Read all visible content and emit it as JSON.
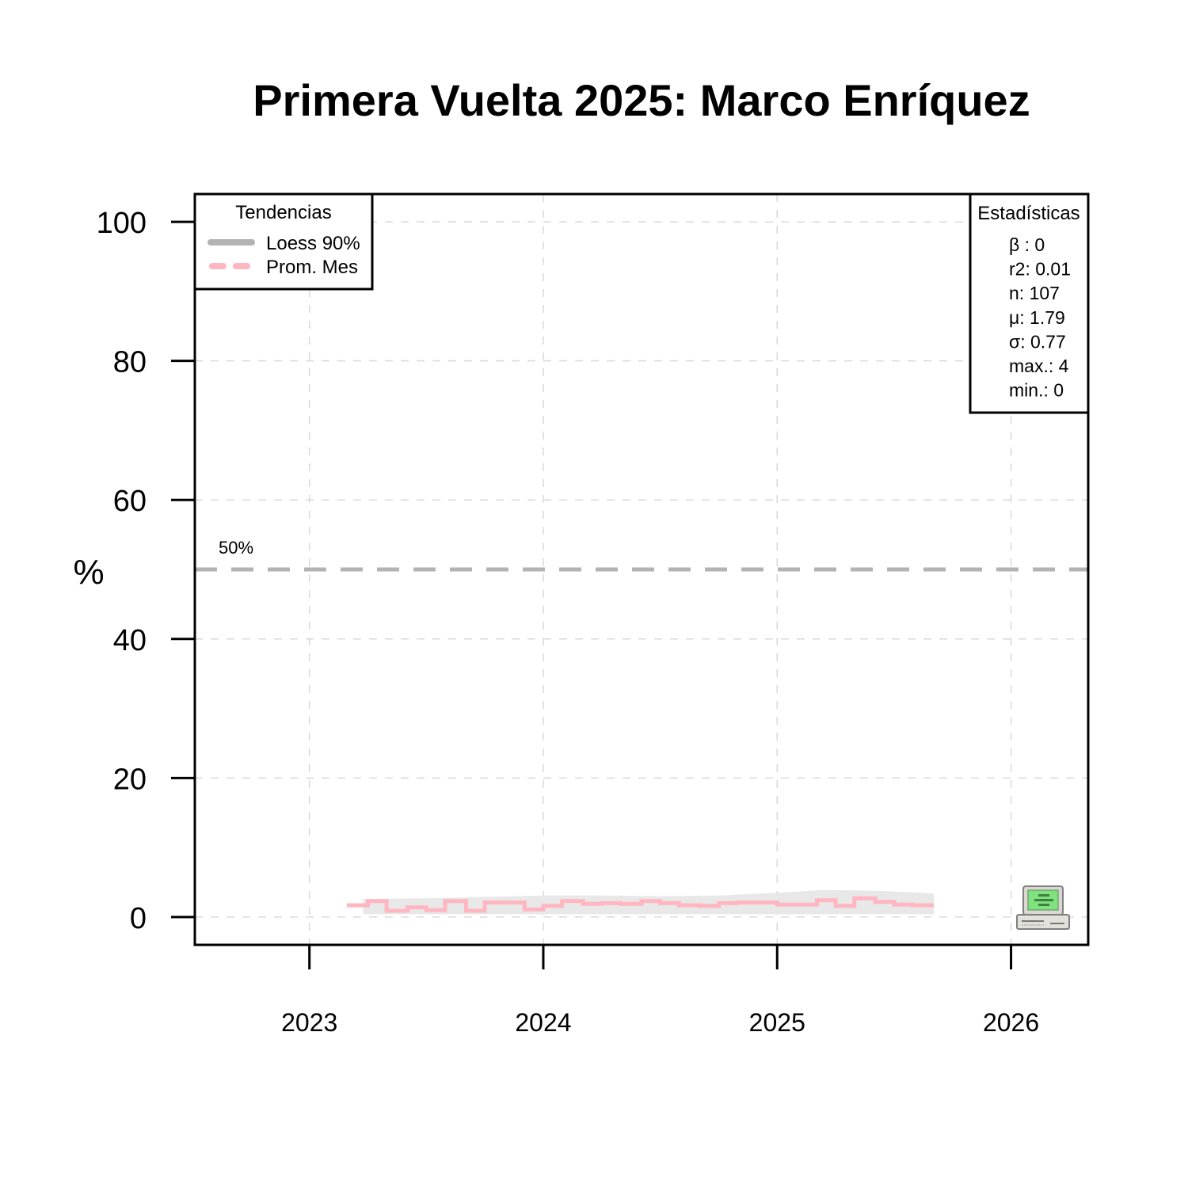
{
  "chart_data": {
    "type": "line",
    "title": "Primera Vuelta 2025: Marco Enríquez",
    "ylabel": "%",
    "xlabel": "",
    "ylim": [
      -4,
      104
    ],
    "xlim": [
      2022.51,
      2026.33
    ],
    "yticks": [
      0,
      20,
      40,
      60,
      80,
      100
    ],
    "xticks": [
      2023,
      2024,
      2025,
      2026
    ],
    "grid": true,
    "reference_line": {
      "value": 50,
      "label": "50%",
      "color": "#b3b3b3"
    },
    "legend": {
      "title": "Tendencias",
      "position": "top-left",
      "entries": [
        {
          "label": "Loess 90%",
          "color": "#b3b3b3",
          "style": "solid"
        },
        {
          "label": "Prom. Mes",
          "color": "#ffb6c1",
          "style": "dashed"
        }
      ]
    },
    "stats_box": {
      "title": "Estadísticas",
      "position": "top-right",
      "lines": [
        "β : 0",
        "r2: 0.01",
        "n: 107",
        "μ: 1.79",
        "σ: 0.77",
        "max.: 4",
        "min.: 0"
      ]
    },
    "series": [
      {
        "name": "Prom. Mes",
        "style": "step",
        "color": "#ffb6c1",
        "x": [
          2023.16,
          2023.25,
          2023.33,
          2023.42,
          2023.5,
          2023.58,
          2023.67,
          2023.75,
          2023.83,
          2023.92,
          2024.0,
          2024.08,
          2024.17,
          2024.25,
          2024.33,
          2024.42,
          2024.5,
          2024.58,
          2024.67,
          2024.75,
          2024.83,
          2024.92,
          2025.0,
          2025.08,
          2025.17,
          2025.25,
          2025.33,
          2025.42,
          2025.5,
          2025.58,
          2025.67
        ],
        "y": [
          1.7,
          2.3,
          0.9,
          1.4,
          1.0,
          2.3,
          0.9,
          2.1,
          2.1,
          1.1,
          1.6,
          2.3,
          1.9,
          2.0,
          1.9,
          2.3,
          2.0,
          1.7,
          1.6,
          2.0,
          2.1,
          2.1,
          1.8,
          1.8,
          2.4,
          1.6,
          2.7,
          2.2,
          1.8,
          1.7,
          1.7
        ]
      },
      {
        "name": "Loess 90%",
        "style": "band",
        "color": "#e8e8e8",
        "x": [
          2023.23,
          2023.5,
          2023.75,
          2024.0,
          2024.25,
          2024.5,
          2024.75,
          2025.0,
          2025.2,
          2025.4,
          2025.55,
          2025.67
        ],
        "lower": [
          0.4,
          0.4,
          0.4,
          0.4,
          0.4,
          0.4,
          0.4,
          0.4,
          0.4,
          0.4,
          0.4,
          0.4
        ],
        "upper": [
          2.6,
          2.7,
          2.9,
          3.1,
          3.1,
          3.0,
          3.1,
          3.5,
          3.9,
          3.8,
          3.6,
          3.4
        ]
      }
    ]
  },
  "icon": "computer-icon"
}
